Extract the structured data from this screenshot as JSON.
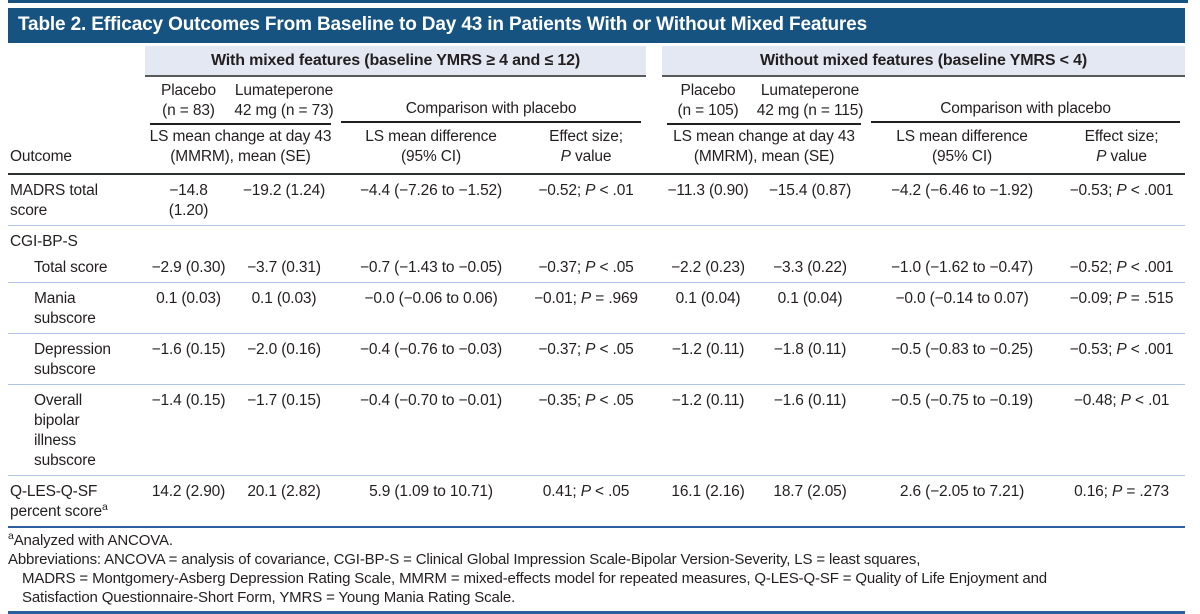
{
  "colors": {
    "title-bar": "#175380",
    "title-text": "#ffffff",
    "band-bg": "#e4e8f3",
    "band-rule": "#58595b",
    "header-rule": "#2f3031",
    "span-rule": "#231f20",
    "row-separator": "#b3c3e3",
    "blue-rule": "#2b5f9e",
    "text": "#231f20"
  },
  "title": "Table 2. Efficacy Outcomes From Baseline to Day 43 in Patients With or Without Mixed Features",
  "groups": [
    {
      "label": "With mixed features (baseline YMRS ≥ 4 and ≤ 12)"
    },
    {
      "label": "Without mixed features (baseline YMRS < 4)"
    }
  ],
  "columns": {
    "outcome": "Outcome",
    "left": {
      "placebo": "Placebo\n(n = 83)",
      "lumateperone": "Lumateperone\n42 mg (n = 73)",
      "comparison": "Comparison with placebo",
      "ls_change": "LS mean change at day 43 (MMRM), mean (SE)",
      "ls_difference": "LS mean difference\n(95% CI)",
      "effect_size": "Effect size;\nP value"
    },
    "right": {
      "placebo": "Placebo\n(n = 105)",
      "lumateperone": "Lumateperone\n42 mg (n = 115)",
      "comparison": "Comparison with placebo",
      "ls_change": "LS mean change at day 43 (MMRM), mean (SE)",
      "ls_difference": "LS mean difference\n(95% CI)",
      "effect_size": "Effect size;\nP value"
    }
  },
  "rows": [
    {
      "label": "MADRS total\nscore",
      "cells": [
        "−14.8 (1.20)",
        "−19.2 (1.24)",
        "−4.4 (−7.26 to −1.52)",
        "−0.52; P < .01",
        "−11.3 (0.90)",
        "−15.4 (0.87)",
        "−4.2 (−6.46 to −1.92)",
        "−0.53; P < .001"
      ]
    },
    {
      "label": "CGI-BP-S",
      "section": true
    },
    {
      "label": "Total score",
      "cells": [
        "−2.9 (0.30)",
        "−3.7 (0.31)",
        "−0.7 (−1.43 to −0.05)",
        "−0.37; P < .05",
        "−2.2 (0.23)",
        "−3.3 (0.22)",
        "−1.0 (−1.62 to −0.47)",
        "−0.52; P < .001"
      ]
    },
    {
      "label": "Mania\nsubscore",
      "cells": [
        "0.1 (0.03)",
        "0.1 (0.03)",
        "−0.0 (−0.06 to 0.06)",
        "−0.01; P = .969",
        "0.1 (0.04)",
        "0.1 (0.04)",
        "−0.0 (−0.14 to 0.07)",
        "−0.09; P = .515"
      ]
    },
    {
      "label": "Depression\nsubscore",
      "cells": [
        "−1.6 (0.15)",
        "−2.0 (0.16)",
        "−0.4 (−0.76 to −0.03)",
        "−0.37; P < .05",
        "−1.2 (0.11)",
        "−1.8 (0.11)",
        "−0.5 (−0.83 to −0.25)",
        "−0.53; P < .001"
      ]
    },
    {
      "label": "Overall\nbipolar\nillness\nsubscore",
      "cells": [
        "−1.4 (0.15)",
        "−1.7 (0.15)",
        "−0.4 (−0.70 to −0.01)",
        "−0.35; P < .05",
        "−1.2 (0.11)",
        "−1.6 (0.11)",
        "−0.5 (−0.75 to −0.19)",
        "−0.48; P < .01"
      ]
    },
    {
      "label": "Q-LES-Q-SF\npercent score",
      "sup": "a",
      "cells": [
        "14.2 (2.90)",
        "20.1 (2.82)",
        "5.9 (1.09 to 10.71)",
        "0.41; P < .05",
        "16.1 (2.16)",
        "18.7 (2.05)",
        "2.6 (−2.05 to 7.21)",
        "0.16; P = .273"
      ]
    }
  ],
  "footnotes": {
    "marker": "a",
    "analyzed": "Analyzed with ANCOVA.",
    "abbrev_lines": [
      "Abbreviations: ANCOVA = analysis of covariance, CGI-BP-S = Clinical Global Impression Scale-Bipolar Version-Severity, LS = least squares,",
      "MADRS = Montgomery-Asberg Depression Rating Scale, MMRM = mixed-effects model for repeated measures, Q-LES-Q-SF = Quality of Life Enjoyment and",
      "Satisfaction Questionnaire-Short Form, YMRS = Young Mania Rating Scale."
    ]
  }
}
